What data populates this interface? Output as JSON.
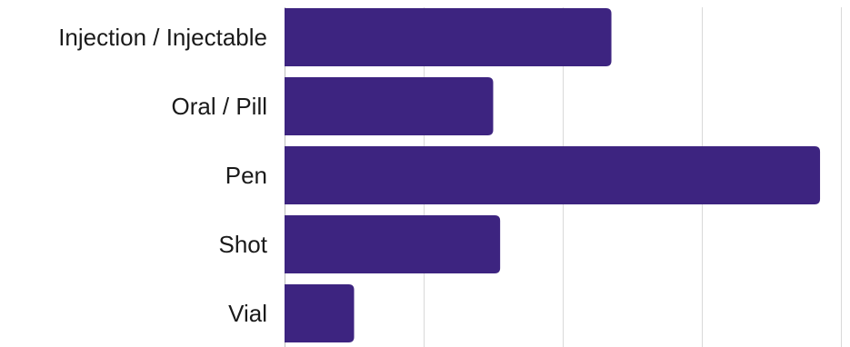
{
  "chart_data": {
    "type": "bar",
    "orientation": "horizontal",
    "categories": [
      "Injection / Injectable",
      "Oral / Pill",
      "Pen",
      "Shot",
      "Vial"
    ],
    "values": [
      47,
      30,
      77,
      31,
      10
    ],
    "xlim": [
      0,
      80
    ],
    "grid": true,
    "bar_color": "#3d2480"
  }
}
